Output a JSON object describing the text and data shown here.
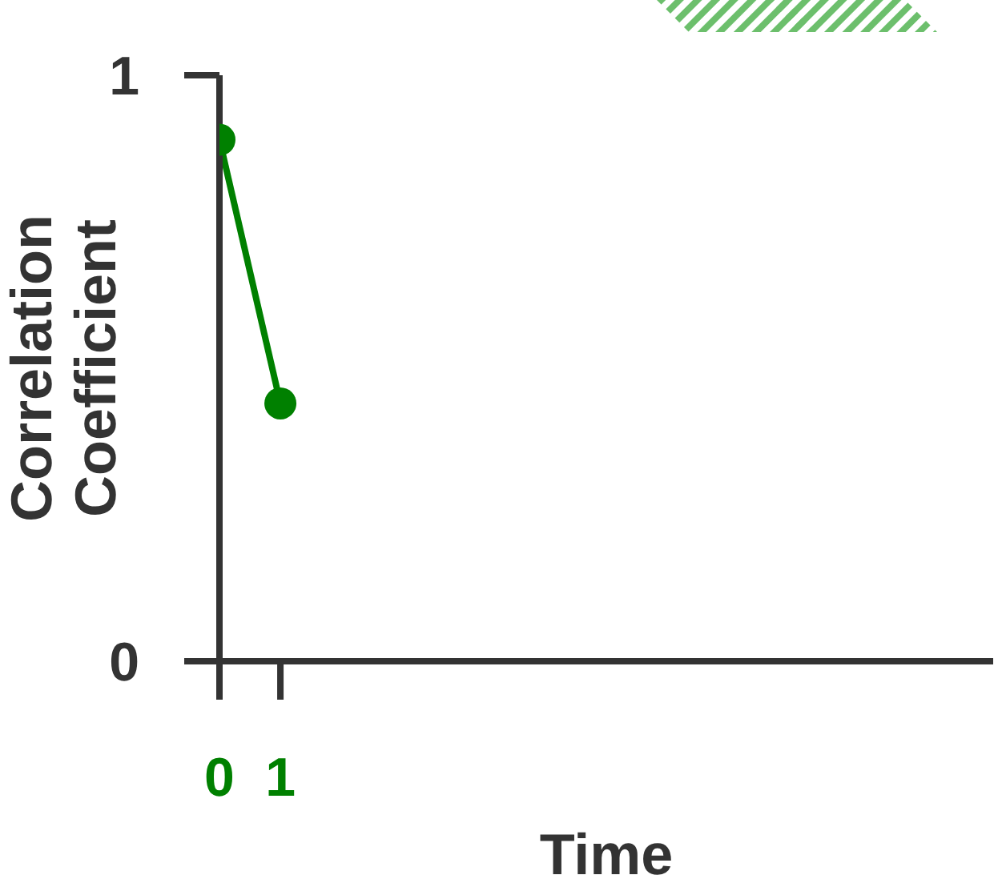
{
  "chart_data": {
    "type": "line",
    "xlabel": "Time",
    "ylabel": "Correlation Coefficient",
    "x": [
      0,
      1
    ],
    "series": [
      {
        "color": "#008000",
        "values": [
          0.89,
          0.44
        ]
      }
    ],
    "xlim": [
      0,
      12.7
    ],
    "xticks": [
      0,
      1
    ],
    "ylim": [
      0,
      1
    ],
    "yticks": [
      0,
      1
    ],
    "marker": "circle",
    "line_style": "solid",
    "grid": false,
    "legend": false
  }
}
